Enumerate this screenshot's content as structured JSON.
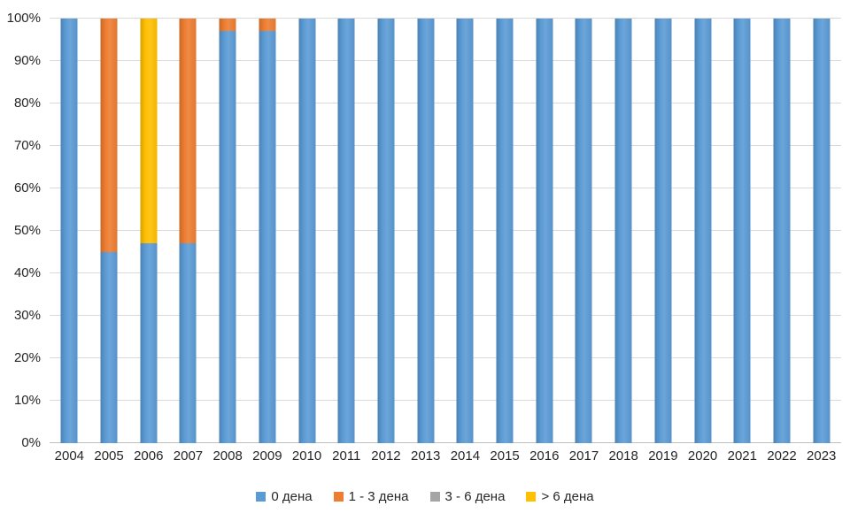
{
  "chart_data": {
    "type": "bar",
    "stacked": true,
    "percent": true,
    "title": "",
    "xlabel": "",
    "ylabel": "",
    "ylim": [
      0,
      100
    ],
    "grid": true,
    "legend_position": "bottom",
    "y_ticks": [
      "0%",
      "10%",
      "20%",
      "30%",
      "40%",
      "50%",
      "60%",
      "70%",
      "80%",
      "90%",
      "100%"
    ],
    "categories": [
      "2004",
      "2005",
      "2006",
      "2007",
      "2008",
      "2009",
      "2010",
      "2011",
      "2012",
      "2013",
      "2014",
      "2015",
      "2016",
      "2017",
      "2018",
      "2019",
      "2020",
      "2021",
      "2022",
      "2023"
    ],
    "series": [
      {
        "name": "0 дена",
        "color": "#5B9BD5",
        "values": [
          100,
          45,
          47,
          47,
          97,
          97,
          100,
          100,
          100,
          100,
          100,
          100,
          100,
          100,
          100,
          100,
          100,
          100,
          100,
          100
        ]
      },
      {
        "name": "1 - 3 дена",
        "color": "#ED7D31",
        "values": [
          0,
          55,
          0,
          53,
          3,
          3,
          0,
          0,
          0,
          0,
          0,
          0,
          0,
          0,
          0,
          0,
          0,
          0,
          0,
          0
        ]
      },
      {
        "name": "3 - 6 дена",
        "color": "#A5A5A5",
        "values": [
          0,
          0,
          0,
          0,
          0,
          0,
          0,
          0,
          0,
          0,
          0,
          0,
          0,
          0,
          0,
          0,
          0,
          0,
          0,
          0
        ]
      },
      {
        "name": "> 6 дена",
        "color": "#FFC000",
        "values": [
          0,
          0,
          53,
          0,
          0,
          0,
          0,
          0,
          0,
          0,
          0,
          0,
          0,
          0,
          0,
          0,
          0,
          0,
          0,
          0
        ]
      }
    ],
    "colors": {
      "gridline": "#D9D9D9",
      "axis_line": "#BFBFBF",
      "text": "#262626",
      "background": "#FFFFFF"
    }
  }
}
